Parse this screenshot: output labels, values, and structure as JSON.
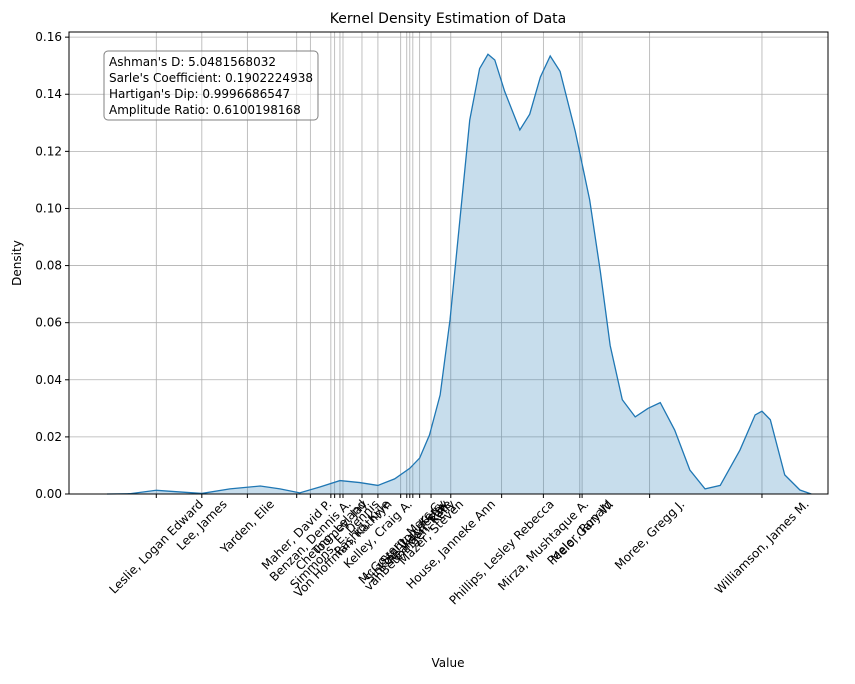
{
  "chart_data": {
    "type": "kde",
    "title": "Kernel Density Estimation of Data",
    "x_label": "Value",
    "y_label": "Density",
    "annotations": [
      "Ashman's D: 5.0481568032",
      "Sarle's Coefficient: 0.1902224938",
      "Hartigan's Dip: 0.9996686547",
      "Amplitude Ratio: 0.6100198168"
    ],
    "color": "#1f77b4",
    "grid": true,
    "xlim": [
      0,
      100
    ],
    "ylim": [
      0,
      0.1618
    ],
    "yticks": [
      {
        "value": 0,
        "label": "0.00"
      },
      {
        "value": 0.02,
        "label": "0.02"
      },
      {
        "value": 0.04,
        "label": "0.04"
      },
      {
        "value": 0.06,
        "label": "0.06"
      },
      {
        "value": 0.08,
        "label": "0.08"
      },
      {
        "value": 0.1,
        "label": "0.10"
      },
      {
        "value": 0.12,
        "label": "0.12"
      },
      {
        "value": 0.14,
        "label": "0.14"
      },
      {
        "value": 0.16,
        "label": "0.16"
      }
    ],
    "xticks": [
      {
        "value": 11.5,
        "label": "Leslie, Logan Edward"
      },
      {
        "value": 17.5,
        "label": "Lee, James"
      },
      {
        "value": 23.5,
        "label": "Yarden, Elie"
      },
      {
        "value": 30.0,
        "label": "Maher, David P."
      },
      {
        "value": 31.8,
        "label": "Benzan, Dennis A."
      },
      {
        "value": 34.5,
        "label": "Cheung, Leland"
      },
      {
        "value": 35.0,
        "label": "Simmons, E. Dennis"
      },
      {
        "value": 35.7,
        "label": "Toomey, Jay"
      },
      {
        "value": 36.1,
        "label": "Von Hoffman, Kathryn"
      },
      {
        "value": 38.6,
        "label": "Rashid, Kyle"
      },
      {
        "value": 40.7,
        "label": "Kelley, Craig A."
      },
      {
        "value": 43.7,
        "label": "McGovern, Marc C."
      },
      {
        "value": 44.5,
        "label": "Sinkov, Viacheslav"
      },
      {
        "value": 44.9,
        "label": "vanBeuningen, Kelly"
      },
      {
        "value": 45.3,
        "label": "Stanton, Kerry"
      },
      {
        "value": 46.2,
        "label": "Reardon, Kate"
      },
      {
        "value": 47.7,
        "label": "Mazer, Steven"
      },
      {
        "value": 50.3,
        "label": "House, Janneke Ann"
      },
      {
        "value": 57.0,
        "label": "Phillips, Lesley Rebecca"
      },
      {
        "value": 62.5,
        "label": "Mirza, Mushtaque A."
      },
      {
        "value": 67.3,
        "label": "Peeler, Ronald"
      },
      {
        "value": 67.6,
        "label": "Melo, Gary W."
      },
      {
        "value": 76.5,
        "label": "Moree, Gregg J."
      },
      {
        "value": 91.3,
        "label": "Williamson, James M."
      }
    ],
    "x": [
      5.0,
      8.0,
      11.5,
      15.3,
      17.5,
      21.2,
      25.2,
      27.8,
      30.4,
      33.1,
      35.7,
      38.3,
      40.7,
      42.9,
      44.9,
      46.2,
      47.5,
      48.9,
      50.2,
      51.5,
      52.8,
      54.1,
      55.2,
      56.1,
      57.4,
      59.4,
      60.7,
      62.1,
      63.4,
      64.7,
      66.7,
      68.6,
      70.0,
      71.3,
      72.9,
      74.6,
      76.3,
      77.9,
      79.8,
      81.8,
      83.8,
      85.8,
      88.4,
      90.4,
      91.3,
      92.4,
      94.3,
      96.3,
      97.8
    ],
    "values": [
      0,
      0.0001,
      0.0013,
      0.0006,
      0.0002,
      0.0018,
      0.0028,
      0.0018,
      0.0004,
      0.0025,
      0.0047,
      0.004,
      0.003,
      0.0053,
      0.009,
      0.0126,
      0.0207,
      0.0347,
      0.061,
      0.096,
      0.131,
      0.149,
      0.154,
      0.152,
      0.141,
      0.1275,
      0.133,
      0.146,
      0.1534,
      0.148,
      0.127,
      0.103,
      0.078,
      0.052,
      0.033,
      0.027,
      0.03,
      0.032,
      0.0224,
      0.0084,
      0.0018,
      0.003,
      0.0154,
      0.0277,
      0.029,
      0.026,
      0.0067,
      0.0014,
      0
    ]
  }
}
